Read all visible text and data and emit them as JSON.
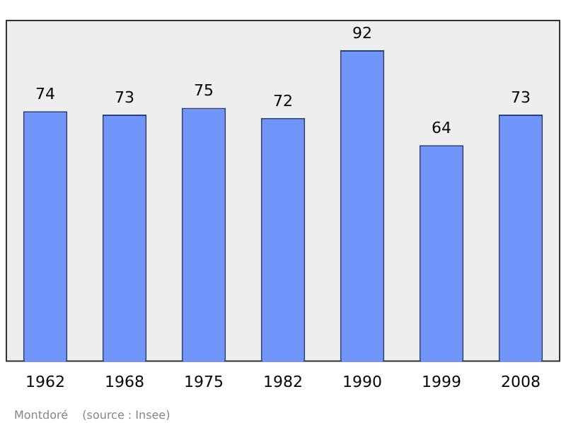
{
  "chart_data": {
    "type": "bar",
    "categories": [
      "1962",
      "1968",
      "1975",
      "1982",
      "1990",
      "1999",
      "2008"
    ],
    "values": [
      74,
      73,
      75,
      72,
      92,
      64,
      73
    ],
    "color": "#7095fb",
    "ylim": [
      0,
      101
    ],
    "tick_labels": "x",
    "data_labels": true,
    "grid": false,
    "legend": false,
    "annotations": [
      "Montdoré    (source : Insee)"
    ]
  }
}
